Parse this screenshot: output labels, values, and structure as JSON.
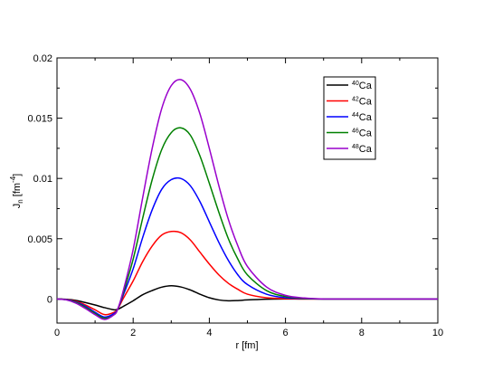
{
  "chart_data": {
    "type": "line",
    "title": "",
    "xlabel": "r [fm]",
    "ylabel_main": "J",
    "ylabel_sub": "n",
    "ylabel_unit_open": " [fm",
    "ylabel_unit_exp": "-4",
    "ylabel_unit_close": "]",
    "xlim": [
      0,
      10
    ],
    "ylim": [
      -0.002,
      0.02
    ],
    "xticks": [
      0,
      2,
      4,
      6,
      8,
      10
    ],
    "xtick_labels": [
      "0",
      "2",
      "4",
      "6",
      "8",
      "10"
    ],
    "yticks": [
      0,
      0.005,
      0.01,
      0.015,
      0.02
    ],
    "ytick_labels": [
      "0",
      "0.005",
      "0.01",
      "0.015",
      "0.02"
    ],
    "grid": false,
    "legend_position": "top-right",
    "x": [
      0,
      0.25,
      0.5,
      0.75,
      1.0,
      1.25,
      1.5,
      1.6,
      1.75,
      2.0,
      2.25,
      2.5,
      2.75,
      3.0,
      3.25,
      3.5,
      3.75,
      4.0,
      4.25,
      4.5,
      4.75,
      5.0,
      5.5,
      6.0,
      6.5,
      7.0,
      7.5,
      8.0,
      9.0,
      10.0
    ],
    "series": [
      {
        "name_sup": "40",
        "name_base": "Ca",
        "color": "#000000",
        "values": [
          0,
          -3e-05,
          -0.00012,
          -0.0003,
          -0.0005,
          -0.00072,
          -0.0009,
          -0.00085,
          -0.0006,
          -0.00015,
          0.00035,
          0.0007,
          0.00098,
          0.0011,
          0.001,
          0.00075,
          0.0004,
          0.0001,
          -8e-05,
          -0.00015,
          -0.00013,
          -8e-05,
          -2e-05,
          0,
          0,
          0,
          0,
          0,
          0,
          0
        ]
      },
      {
        "name_sup": "42",
        "name_base": "Ca",
        "color": "#ff0000",
        "values": [
          0,
          -5e-05,
          -0.0002,
          -0.0005,
          -0.0009,
          -0.0013,
          -0.0011,
          -0.0008,
          0.0001,
          0.0015,
          0.0031,
          0.0044,
          0.0053,
          0.0056,
          0.0055,
          0.0049,
          0.0039,
          0.0029,
          0.002,
          0.0013,
          0.0008,
          0.0004,
          0.0001,
          3e-05,
          0,
          0,
          0,
          0,
          0,
          0
        ]
      },
      {
        "name_sup": "44",
        "name_base": "Ca",
        "color": "#0000ff",
        "values": [
          0,
          -6e-05,
          -0.00025,
          -0.0006,
          -0.0011,
          -0.0015,
          -0.0012,
          -0.0008,
          0.0004,
          0.0025,
          0.0051,
          0.0074,
          0.0091,
          0.0099,
          0.01,
          0.0094,
          0.0081,
          0.0064,
          0.0047,
          0.0032,
          0.002,
          0.0012,
          0.0004,
          0.0001,
          3e-05,
          0,
          0,
          0,
          0,
          0
        ]
      },
      {
        "name_sup": "46",
        "name_base": "Ca",
        "color": "#008000",
        "values": [
          0,
          -7e-05,
          -0.0003,
          -0.0007,
          -0.0012,
          -0.0016,
          -0.0013,
          -0.0008,
          0.0006,
          0.0033,
          0.0067,
          0.0099,
          0.0124,
          0.0138,
          0.0142,
          0.0136,
          0.0119,
          0.0096,
          0.0072,
          0.005,
          0.0033,
          0.002,
          0.0007,
          0.0002,
          5e-05,
          0,
          0,
          0,
          0,
          0
        ]
      },
      {
        "name_sup": "48",
        "name_base": "Ca",
        "color": "#9900cc",
        "values": [
          0,
          -8e-05,
          -0.00035,
          -0.0008,
          -0.0013,
          -0.0017,
          -0.0013,
          -0.0008,
          0.0008,
          0.0041,
          0.0084,
          0.0125,
          0.0158,
          0.0177,
          0.0182,
          0.0174,
          0.0154,
          0.0125,
          0.0094,
          0.0066,
          0.0044,
          0.0027,
          0.001,
          0.0003,
          8e-05,
          0,
          0,
          0,
          0,
          0
        ]
      }
    ]
  }
}
